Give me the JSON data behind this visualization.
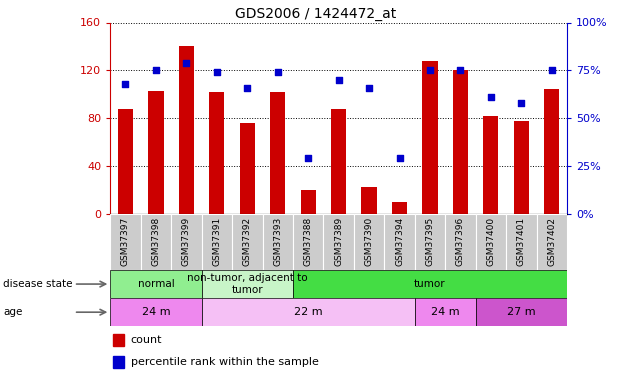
{
  "title": "GDS2006 / 1424472_at",
  "samples": [
    "GSM37397",
    "GSM37398",
    "GSM37399",
    "GSM37391",
    "GSM37392",
    "GSM37393",
    "GSM37388",
    "GSM37389",
    "GSM37390",
    "GSM37394",
    "GSM37395",
    "GSM37396",
    "GSM37400",
    "GSM37401",
    "GSM37402"
  ],
  "count_values": [
    88,
    103,
    140,
    102,
    76,
    102,
    20,
    88,
    22,
    10,
    128,
    120,
    82,
    78,
    104
  ],
  "percentile_values": [
    68,
    75,
    79,
    74,
    66,
    74,
    29,
    70,
    66,
    29,
    75,
    75,
    61,
    58,
    75
  ],
  "ylim_left": [
    0,
    160
  ],
  "ylim_right": [
    0,
    100
  ],
  "yticks_left": [
    0,
    40,
    80,
    120,
    160
  ],
  "yticks_right": [
    0,
    25,
    50,
    75,
    100
  ],
  "disease_state_groups": [
    {
      "label": "normal",
      "start": 0,
      "end": 3,
      "color": "#90EE90"
    },
    {
      "label": "non-tumor, adjacent to\ntumor",
      "start": 3,
      "end": 6,
      "color": "#C8F5C8"
    },
    {
      "label": "tumor",
      "start": 6,
      "end": 15,
      "color": "#44DD44"
    }
  ],
  "age_groups": [
    {
      "label": "24 m",
      "start": 0,
      "end": 3,
      "color": "#EE88EE"
    },
    {
      "label": "22 m",
      "start": 3,
      "end": 10,
      "color": "#F5C0F5"
    },
    {
      "label": "24 m",
      "start": 10,
      "end": 12,
      "color": "#EE88EE"
    },
    {
      "label": "27 m",
      "start": 12,
      "end": 15,
      "color": "#CC55CC"
    }
  ],
  "bar_color": "#CC0000",
  "dot_color": "#0000CC",
  "bar_width": 0.5,
  "left_axis_color": "#CC0000",
  "right_axis_color": "#0000CC",
  "xtick_bg_color": "#CCCCCC",
  "legend_items": [
    {
      "label": "count",
      "color": "#CC0000"
    },
    {
      "label": "percentile rank within the sample",
      "color": "#0000CC"
    }
  ]
}
